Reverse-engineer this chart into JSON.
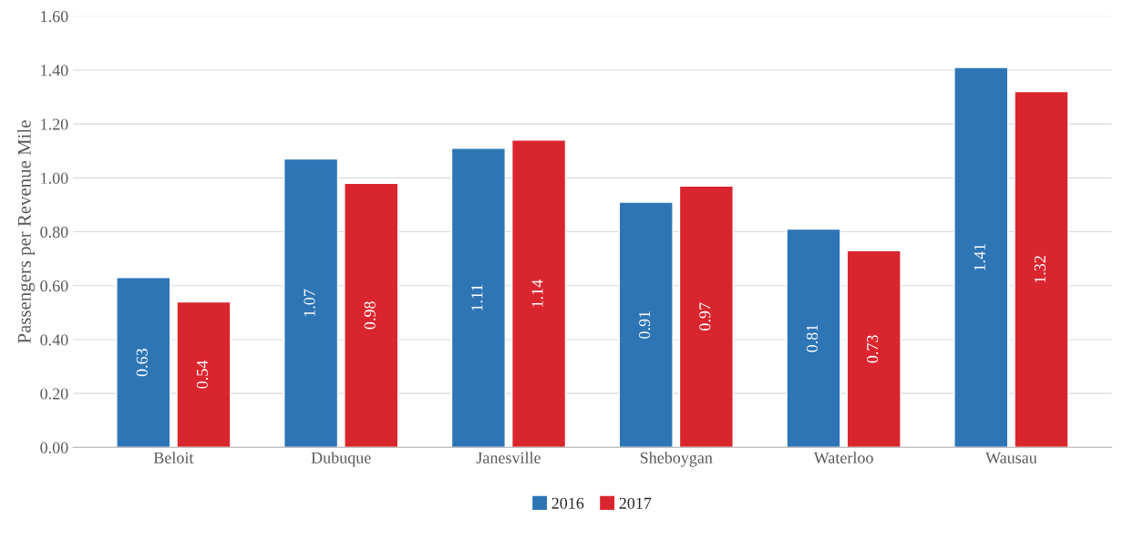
{
  "chart_data": {
    "type": "bar",
    "ylabel": "Passengers per Revenue Mile",
    "categories": [
      "Beloit",
      "Dubuque",
      "Janesville",
      "Sheboygan",
      "Waterloo",
      "Wausau"
    ],
    "series": [
      {
        "name": "2016",
        "color": "#2e75b6",
        "values": [
          0.63,
          1.07,
          1.11,
          0.91,
          0.81,
          1.41
        ]
      },
      {
        "name": "2017",
        "color": "#d9262e",
        "values": [
          0.54,
          0.98,
          1.14,
          0.97,
          0.73,
          1.32
        ]
      }
    ],
    "ylim": [
      0,
      1.6
    ],
    "yticks": [
      {
        "value": 0,
        "label": "0.00"
      },
      {
        "value": 0.2,
        "label": "0.20"
      },
      {
        "value": 0.4,
        "label": "0.40"
      },
      {
        "value": 0.6,
        "label": "0.60"
      },
      {
        "value": 0.8,
        "label": "0.80"
      },
      {
        "value": 1.0,
        "label": "1.00"
      },
      {
        "value": 1.2,
        "label": "1.20"
      },
      {
        "value": 1.4,
        "label": "1.40"
      },
      {
        "value": 1.6,
        "label": "1.60"
      }
    ],
    "grid": "y",
    "legend": "bottom",
    "data_labels": true
  }
}
